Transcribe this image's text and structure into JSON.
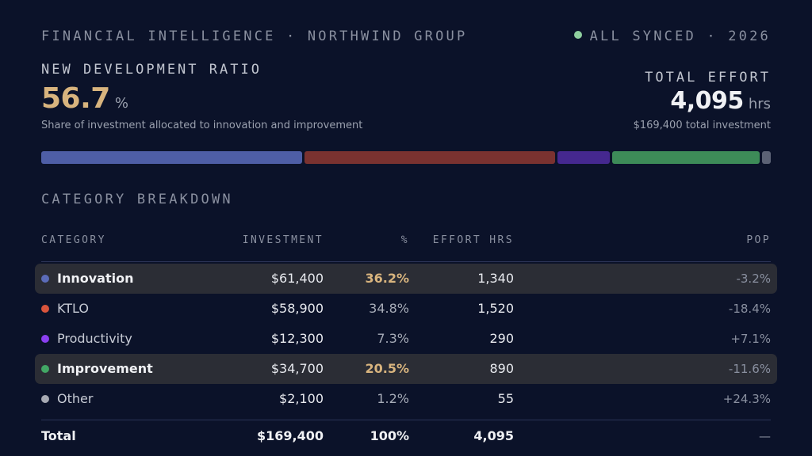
{
  "header": {
    "brand": "FINANCIAL INTELLIGENCE · NORTHWIND GROUP",
    "sync_status": "ALL SYNCED · 2026"
  },
  "kpi": {
    "ratio_label": "NEW DEVELOPMENT RATIO",
    "ratio_value": "56.7",
    "ratio_unit": "%",
    "ratio_sub": "Share of investment allocated to innovation and improvement",
    "effort_label": "TOTAL EFFORT",
    "effort_value": "4,095",
    "effort_unit": "hrs",
    "effort_sub": "$169,400 total investment"
  },
  "allocation_bar": [
    {
      "category": "Innovation",
      "percent": 36.2,
      "color": "#4e5ea6"
    },
    {
      "category": "KTLO",
      "percent": 34.8,
      "color": "#7a3230"
    },
    {
      "category": "Productivity",
      "percent": 7.3,
      "color": "#45288f"
    },
    {
      "category": "Improvement",
      "percent": 20.5,
      "color": "#3d8b58"
    },
    {
      "category": "Other",
      "percent": 1.2,
      "color": "#5c6275"
    }
  ],
  "breakdown": {
    "title": "CATEGORY BREAKDOWN",
    "columns": [
      "CATEGORY",
      "INVESTMENT",
      "%",
      "EFFORT HRS",
      "POP"
    ],
    "rows": [
      {
        "name": "Innovation",
        "investment": "$61,400",
        "percent": "36.2%",
        "effort": "1,340",
        "pop": "-3.2%",
        "dot_color": "#5b6bb8",
        "highlighted": true
      },
      {
        "name": "KTLO",
        "investment": "$58,900",
        "percent": "34.8%",
        "effort": "1,520",
        "pop": "-18.4%",
        "dot_color": "#d9543c",
        "highlighted": false
      },
      {
        "name": "Productivity",
        "investment": "$12,300",
        "percent": "7.3%",
        "effort": "290",
        "pop": "+7.1%",
        "dot_color": "#8a3ff0",
        "highlighted": false
      },
      {
        "name": "Improvement",
        "investment": "$34,700",
        "percent": "20.5%",
        "effort": "890",
        "pop": "-11.6%",
        "dot_color": "#42a765",
        "highlighted": true
      },
      {
        "name": "Other",
        "investment": "$2,100",
        "percent": "1.2%",
        "effort": "55",
        "pop": "+24.3%",
        "dot_color": "#a7aab3",
        "highlighted": false
      }
    ],
    "total": {
      "name": "Total",
      "investment": "$169,400",
      "percent": "100%",
      "effort": "4,095",
      "pop": "—"
    }
  }
}
